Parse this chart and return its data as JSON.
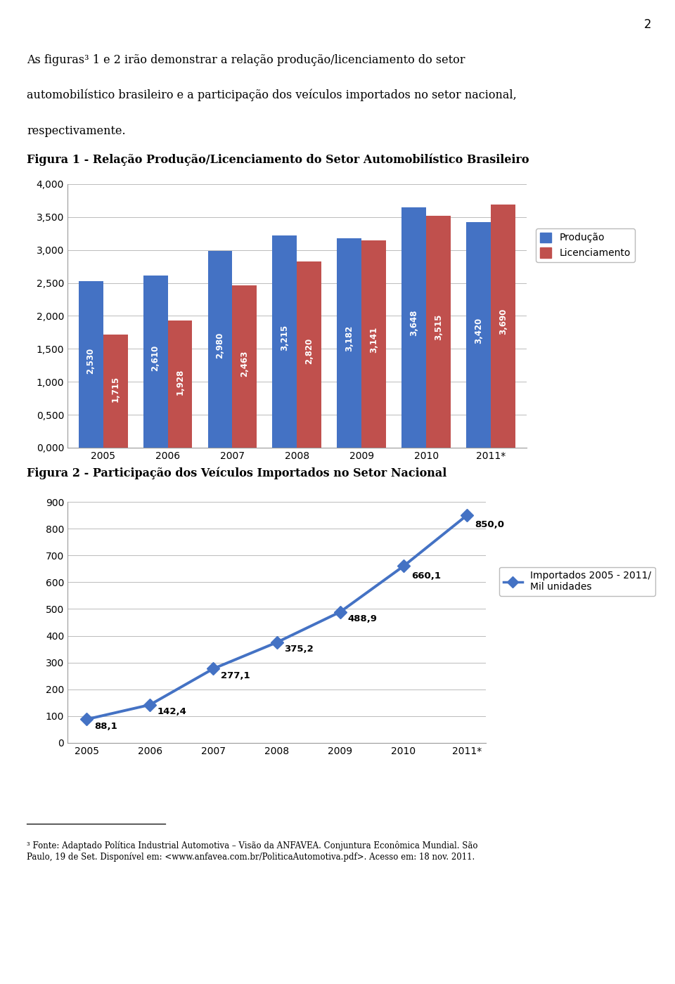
{
  "page_number": "2",
  "intro_line1": "As figuras³ 1 e 2 irão demonstrar a relação produção/licenciamento do setor",
  "intro_line2": "automobilístico brasileiro e a participação dos veículos importados no setor nacional,",
  "intro_line3": "respectivamente.",
  "fig1_title": "Figura 1 - Relação Produção/Licenciamento do Setor Automobilístico Brasileiro",
  "fig1_years": [
    "2005",
    "2006",
    "2007",
    "2008",
    "2009",
    "2010",
    "2011*"
  ],
  "fig1_producao": [
    2.53,
    2.61,
    2.98,
    3.215,
    3.182,
    3.648,
    3.42
  ],
  "fig1_licenciamento": [
    1.715,
    1.928,
    2.463,
    2.82,
    3.141,
    3.515,
    3.69
  ],
  "fig1_ylim": [
    0.0,
    4.0
  ],
  "fig1_yticks": [
    0.0,
    0.5,
    1.0,
    1.5,
    2.0,
    2.5,
    3.0,
    3.5,
    4.0
  ],
  "fig1_ytick_labels": [
    "0,000",
    "0,500",
    "1,000",
    "1,500",
    "2,000",
    "2,500",
    "3,000",
    "3,500",
    "4,000"
  ],
  "fig1_bar_blue": "#4472C4",
  "fig1_bar_red": "#C0504D",
  "fig1_legend_prod": "Produção",
  "fig1_legend_lic": "Licenciamento",
  "fig2_title": "Figura 2 - Participação dos Veículos Importados no Setor Nacional",
  "fig2_years": [
    "2005",
    "2006",
    "2007",
    "2008",
    "2009",
    "2010",
    "2011*"
  ],
  "fig2_values": [
    88.1,
    142.4,
    277.1,
    375.2,
    488.9,
    660.1,
    850.0
  ],
  "fig2_ylim": [
    0,
    900
  ],
  "fig2_yticks": [
    0,
    100,
    200,
    300,
    400,
    500,
    600,
    700,
    800,
    900
  ],
  "fig2_line_color": "#4472C4",
  "fig2_legend": "Importados 2005 - 2011/\nMil unidades",
  "footnote": "³ Fonte: Adaptado Política Industrial Automotiva – Visão da ANFAVEA. Conjuntura Econômica Mundial. São\nPaulo, 19 de Set. Disponível em: <www.anfavea.com.br/PoliticaAutomotiva.pdf>. Acesso em: 18 nov. 2011.",
  "bg_color": "#FFFFFF",
  "text_color": "#000000"
}
